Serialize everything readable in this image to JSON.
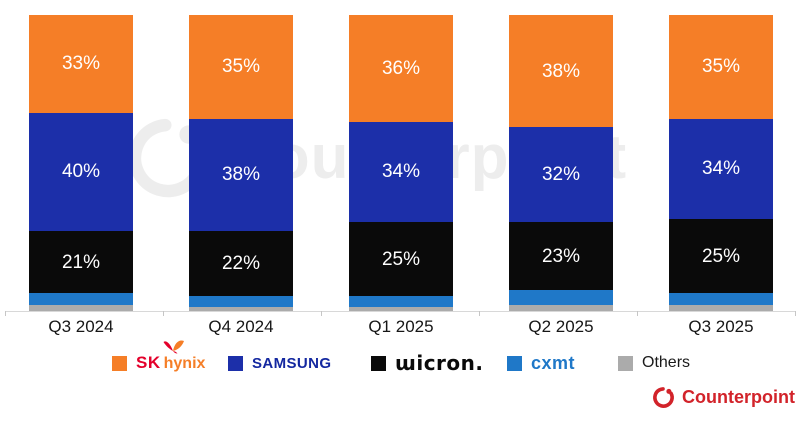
{
  "watermark": {
    "text": "Counterpoint"
  },
  "brand": {
    "name": "Counterpoint"
  },
  "chart_data": {
    "type": "bar",
    "stacked": true,
    "orientation": "vertical",
    "units": "percent",
    "ylim": [
      0,
      100
    ],
    "grid": false,
    "legend_position": "bottom",
    "categories": [
      "Q3 2024",
      "Q4 2024",
      "Q1 2025",
      "Q2 2025",
      "Q3 2025"
    ],
    "series": [
      {
        "name": "SK hynix",
        "color": "#F57E27",
        "labeled": true,
        "values": [
          33,
          35,
          36,
          38,
          35
        ]
      },
      {
        "name": "Samsung",
        "color": "#1C2FA9",
        "labeled": true,
        "values": [
          40,
          38,
          34,
          32,
          34
        ]
      },
      {
        "name": "Micron",
        "color": "#0A0A0A",
        "labeled": true,
        "values": [
          21,
          22,
          25,
          23,
          25
        ]
      },
      {
        "name": "CXMT",
        "color": "#1F78C8",
        "labeled": false,
        "values": [
          4,
          3.5,
          3.5,
          5,
          4
        ]
      },
      {
        "name": "Others",
        "color": "#ABABAB",
        "labeled": false,
        "values": [
          2,
          1.5,
          1.5,
          2,
          2
        ]
      }
    ],
    "value_label_format": "{v}%"
  },
  "legend": {
    "items": [
      {
        "id": "sk-hynix",
        "label": "SK hynix",
        "marker_color": "#F57E27",
        "icon": "sk-hynix-wings-icon",
        "parts": [
          {
            "text": "SK",
            "style": "sk"
          },
          {
            "text": "hynix",
            "style": "hynix"
          }
        ]
      },
      {
        "id": "samsung",
        "label": "Samsung",
        "marker_color": "#1C2FA9",
        "parts": [
          {
            "text": "SAMSUNG",
            "style": "samsung"
          }
        ]
      },
      {
        "id": "micron",
        "label": "Micron",
        "marker_color": "#0A0A0A",
        "parts": [
          {
            "text": "ɯicron.",
            "style": "micron"
          }
        ]
      },
      {
        "id": "cxmt",
        "label": "CXMT",
        "marker_color": "#1F78C8",
        "parts": [
          {
            "text": "cxmt",
            "style": "cxmt"
          }
        ]
      },
      {
        "id": "others",
        "label": "Others",
        "marker_color": "#ABABAB",
        "parts": [
          {
            "text": "Others",
            "style": "others"
          }
        ]
      }
    ]
  }
}
